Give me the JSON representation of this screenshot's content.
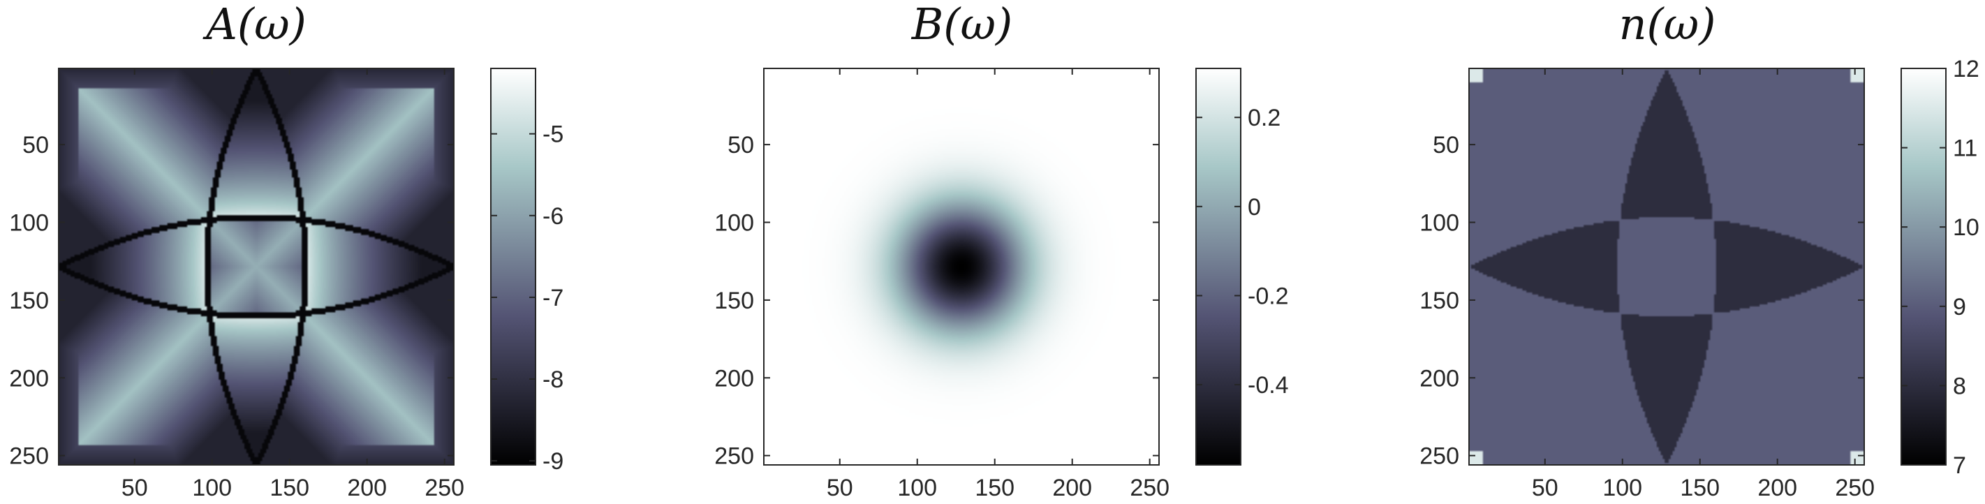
{
  "chart_data": [
    {
      "type": "heatmap",
      "title": "A(ω)",
      "xlim": [
        1,
        256
      ],
      "ylim": [
        1,
        256
      ],
      "y_reversed": true,
      "x_ticks": [
        "50",
        "100",
        "150",
        "200",
        "250"
      ],
      "y_ticks": [
        "50",
        "100",
        "150",
        "200",
        "250"
      ],
      "clim": [
        -9.05,
        -4.2
      ],
      "colorbar_ticks": [
        "-5",
        "-6",
        "-7",
        "-8",
        "-9"
      ],
      "colorbar_tick_values": [
        -5,
        -6,
        -7,
        -8,
        -9
      ],
      "colormap": "bone",
      "pattern": "two crossing star/diamond curves; bright cusps at edges, bright diagonals, dark boundaries"
    },
    {
      "type": "heatmap",
      "title": "B(ω)",
      "xlim": [
        1,
        256
      ],
      "ylim": [
        1,
        256
      ],
      "y_reversed": true,
      "x_ticks": [
        "50",
        "100",
        "150",
        "200",
        "250"
      ],
      "y_ticks": [
        "50",
        "100",
        "150",
        "200",
        "250"
      ],
      "clim": [
        -0.58,
        0.31
      ],
      "colorbar_ticks": [
        "0.2",
        "0",
        "-0.2",
        "-0.4"
      ],
      "colorbar_tick_values": [
        0.2,
        0,
        -0.2,
        -0.4
      ],
      "colormap": "bone",
      "pattern": "radially symmetric minimum at center (128,128) rising to maximum near the corners"
    },
    {
      "type": "heatmap",
      "title": "n(ω)",
      "xlim": [
        1,
        256
      ],
      "ylim": [
        1,
        256
      ],
      "y_reversed": true,
      "x_ticks": [
        "50",
        "100",
        "150",
        "200",
        "250"
      ],
      "y_ticks": [
        "50",
        "100",
        "150",
        "200",
        "250"
      ],
      "clim": [
        7,
        12
      ],
      "colorbar_ticks": [
        "12",
        "11",
        "10",
        "9",
        "8",
        "7"
      ],
      "colorbar_tick_values": [
        12,
        11,
        10,
        9,
        8,
        7
      ],
      "colormap": "bone",
      "pattern": "piecewise constant integer regions: central diamond 9, background 8, dark triangles 7, corner caps 11-12"
    }
  ]
}
